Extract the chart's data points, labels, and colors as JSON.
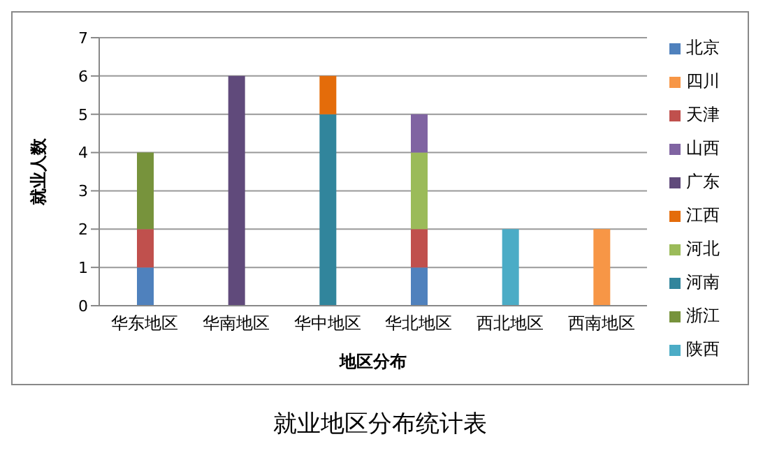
{
  "chart_data": {
    "type": "bar",
    "stacked": true,
    "title": "就业地区分布统计表",
    "xlabel": "地区分布",
    "ylabel": "就业人数",
    "categories": [
      "华东地区",
      "华南地区",
      "华中地区",
      "华北地区",
      "西北地区",
      "西南地区"
    ],
    "series": [
      {
        "name": "北京",
        "color": "#4f81bd",
        "values": [
          1,
          null,
          null,
          1,
          null,
          null
        ]
      },
      {
        "name": "天津",
        "color": "#c0504d",
        "values": [
          1,
          null,
          null,
          1,
          null,
          null
        ]
      },
      {
        "name": "河北",
        "color": "#9bbb59",
        "values": [
          null,
          null,
          null,
          2,
          null,
          null
        ]
      },
      {
        "name": "山西",
        "color": "#8064a2",
        "values": [
          null,
          null,
          null,
          1,
          null,
          null
        ]
      },
      {
        "name": "浙江",
        "color": "#77933c",
        "values": [
          2,
          null,
          null,
          null,
          null,
          null
        ]
      },
      {
        "name": "广东",
        "color": "#604a7b",
        "values": [
          null,
          6,
          null,
          null,
          null,
          null
        ]
      },
      {
        "name": "河南",
        "color": "#31859c",
        "values": [
          null,
          null,
          5,
          null,
          null,
          null
        ]
      },
      {
        "name": "江西",
        "color": "#e46c0a",
        "values": [
          null,
          null,
          1,
          null,
          null,
          null
        ]
      },
      {
        "name": "陕西",
        "color": "#4bacc6",
        "values": [
          null,
          null,
          null,
          null,
          2,
          null
        ]
      },
      {
        "name": "四川",
        "color": "#f79646",
        "values": [
          null,
          null,
          null,
          null,
          null,
          2
        ]
      }
    ],
    "ylim": [
      0,
      7
    ],
    "yticks": [
      0,
      1,
      2,
      3,
      4,
      5,
      6,
      7
    ],
    "grid": "y",
    "legend": "right"
  }
}
